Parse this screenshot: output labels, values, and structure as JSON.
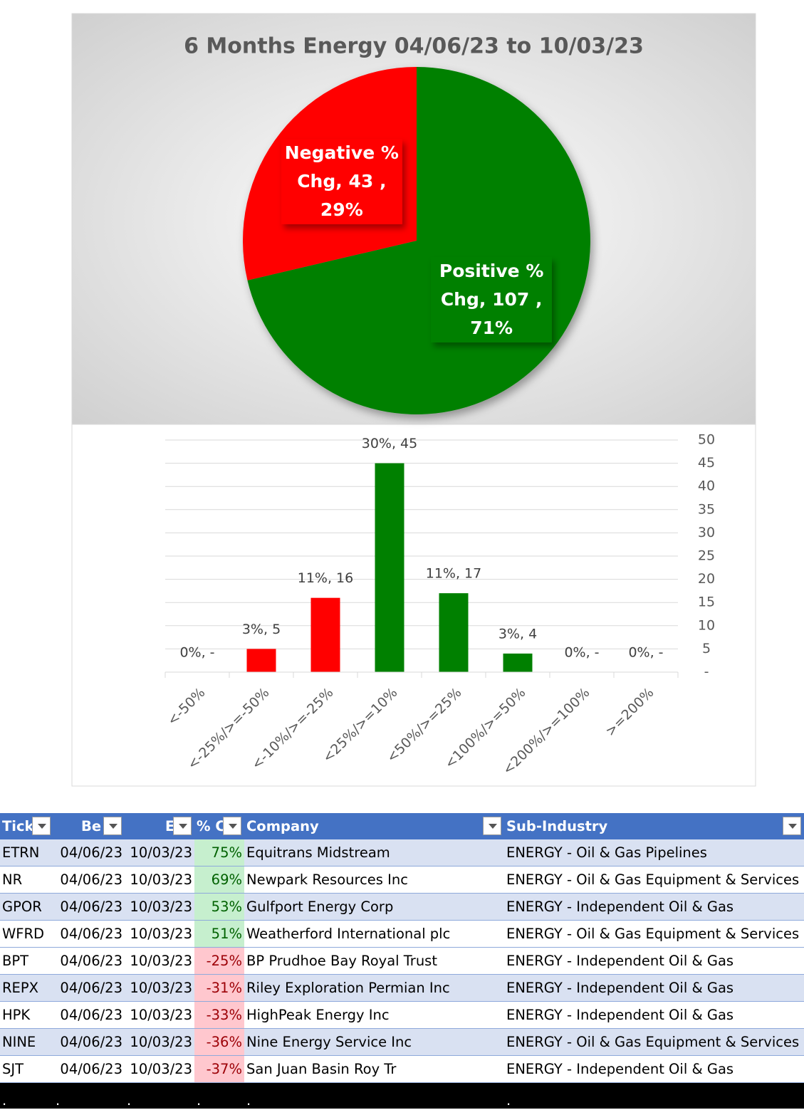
{
  "chart_data": [
    {
      "type": "pie",
      "title": "6 Months Energy 04/06/23 to 10/03/23",
      "categories": [
        "Positive % Chg",
        "Negative % Chg"
      ],
      "values": [
        107,
        43
      ],
      "percent_labels": [
        "71%",
        "29%"
      ],
      "label_separator": ",",
      "colors": [
        "#008000",
        "#ff0000"
      ]
    },
    {
      "type": "bar",
      "categories": [
        "<-50%",
        "<-25%/>=-50%",
        "<-10%/>=-25%",
        "<25%/>=10%",
        "<50%/>=25%",
        "<100%/>=50%",
        "<200%/>=100%",
        ">=200%"
      ],
      "values": [
        0,
        5,
        16,
        45,
        17,
        4,
        0,
        0
      ],
      "value_labels": [
        "0%,  -",
        "3%,  5",
        "11%,  16",
        "30%,  45",
        "11%,  17",
        "3%,  4",
        "0%,  -",
        "0%,  -"
      ],
      "colors": [
        "#ff0000",
        "#ff0000",
        "#ff0000",
        "#008000",
        "#008000",
        "#008000",
        "#008000",
        "#008000"
      ],
      "ylim": [
        0,
        50
      ],
      "yticks": [
        {
          "value": 0,
          "label": "-"
        },
        5,
        10,
        15,
        20,
        25,
        30,
        35,
        40,
        45,
        50
      ],
      "grid": true,
      "y_axis_side": "right"
    }
  ],
  "table": {
    "header": [
      "Tick",
      "Be",
      "E",
      "% C",
      "Company",
      "Sub-Industry"
    ],
    "rows": [
      [
        "ETRN",
        "04/06/23",
        "10/03/23",
        "75%",
        "Equitrans Midstream",
        "ENERGY - Oil & Gas Pipelines"
      ],
      [
        "NR",
        "04/06/23",
        "10/03/23",
        "69%",
        "Newpark Resources Inc",
        "ENERGY - Oil & Gas Equipment & Services"
      ],
      [
        "GPOR",
        "04/06/23",
        "10/03/23",
        "53%",
        "Gulfport Energy Corp",
        "ENERGY - Independent Oil & Gas"
      ],
      [
        "WFRD",
        "04/06/23",
        "10/03/23",
        "51%",
        "Weatherford International plc",
        "ENERGY - Oil & Gas Equipment & Services"
      ],
      [
        "BPT",
        "04/06/23",
        "10/03/23",
        "-25%",
        "BP Prudhoe Bay Royal Trust",
        "ENERGY - Independent Oil & Gas"
      ],
      [
        "REPX",
        "04/06/23",
        "10/03/23",
        "-31%",
        "Riley Exploration Permian Inc",
        "ENERGY - Independent Oil & Gas"
      ],
      [
        "HPK",
        "04/06/23",
        "10/03/23",
        "-33%",
        "HighPeak Energy Inc",
        "ENERGY - Independent Oil & Gas"
      ],
      [
        "NINE",
        "04/06/23",
        "10/03/23",
        "-36%",
        "Nine Energy Service Inc",
        "ENERGY - Oil & Gas Equipment & Services"
      ],
      [
        "SJT",
        "04/06/23",
        "10/03/23",
        "-37%",
        "San Juan Basin Roy Tr",
        "ENERGY - Independent Oil & Gas"
      ]
    ],
    "banded_rows": [
      0,
      2,
      5,
      7
    ],
    "footer_row": [
      ".",
      ".",
      ".",
      ".",
      ".",
      "."
    ]
  }
}
